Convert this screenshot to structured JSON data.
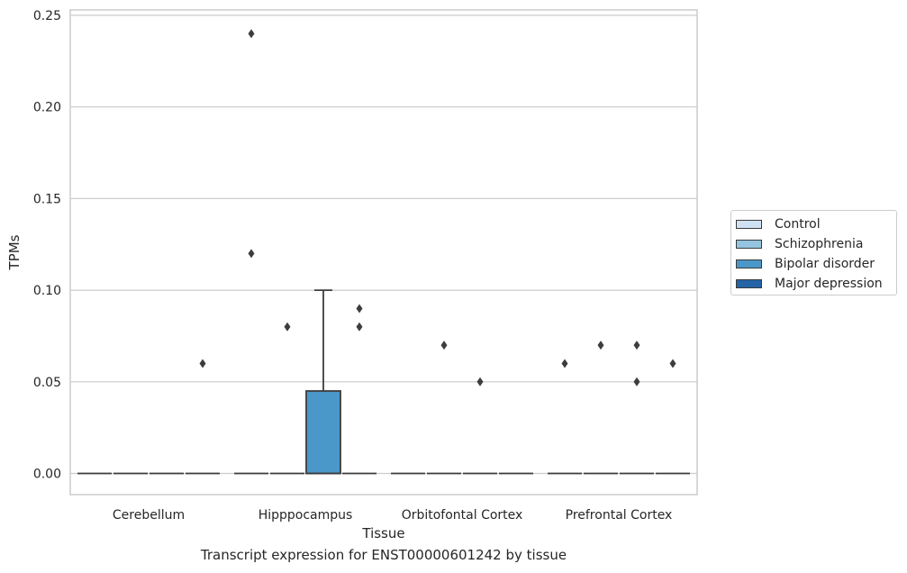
{
  "chart_data": {
    "type": "box",
    "title": "Transcript expression for ENST00000601242 by tissue",
    "xlabel": "Tissue",
    "ylabel": "TPMs",
    "categories": [
      "Cerebellum",
      "Hipppocampus",
      "Orbitofontal Cortex",
      "Prefrontal Cortex"
    ],
    "ylim": [
      -0.012,
      0.253
    ],
    "yticks": [
      "0.00",
      "0.05",
      "0.10",
      "0.15",
      "0.20",
      "0.25"
    ],
    "ytick_values": [
      0,
      0.05,
      0.1,
      0.15,
      0.2,
      0.25
    ],
    "grid": true,
    "legend_position": "right",
    "series": [
      {
        "name": "Control",
        "color": "#d0e1f2",
        "boxes": [
          {
            "category": "Cerebellum",
            "q1": 0,
            "median": 0,
            "q3": 0,
            "whisker_low": 0,
            "whisker_high": 0,
            "outliers": []
          },
          {
            "category": "Hipppocampus",
            "q1": 0,
            "median": 0,
            "q3": 0,
            "whisker_low": 0,
            "whisker_high": 0,
            "outliers": [
              0.24,
              0.12
            ]
          },
          {
            "category": "Orbitofontal Cortex",
            "q1": 0,
            "median": 0,
            "q3": 0,
            "whisker_low": 0,
            "whisker_high": 0,
            "outliers": []
          },
          {
            "category": "Prefrontal Cortex",
            "q1": 0,
            "median": 0,
            "q3": 0,
            "whisker_low": 0,
            "whisker_high": 0,
            "outliers": [
              0.06
            ]
          }
        ]
      },
      {
        "name": "Schizophrenia",
        "color": "#94c4df",
        "boxes": [
          {
            "category": "Cerebellum",
            "q1": 0,
            "median": 0,
            "q3": 0,
            "whisker_low": 0,
            "whisker_high": 0,
            "outliers": []
          },
          {
            "category": "Hipppocampus",
            "q1": 0,
            "median": 0,
            "q3": 0,
            "whisker_low": 0,
            "whisker_high": 0,
            "outliers": [
              0.08
            ]
          },
          {
            "category": "Orbitofontal Cortex",
            "q1": 0,
            "median": 0,
            "q3": 0,
            "whisker_low": 0,
            "whisker_high": 0,
            "outliers": [
              0.07
            ]
          },
          {
            "category": "Prefrontal Cortex",
            "q1": 0,
            "median": 0,
            "q3": 0,
            "whisker_low": 0,
            "whisker_high": 0,
            "outliers": [
              0.07
            ]
          }
        ]
      },
      {
        "name": "Bipolar disorder",
        "color": "#4a98c9",
        "boxes": [
          {
            "category": "Cerebellum",
            "q1": 0,
            "median": 0,
            "q3": 0,
            "whisker_low": 0,
            "whisker_high": 0,
            "outliers": []
          },
          {
            "category": "Hipppocampus",
            "q1": 0,
            "median": 0,
            "q3": 0.045,
            "whisker_low": 0,
            "whisker_high": 0.1,
            "outliers": []
          },
          {
            "category": "Orbitofontal Cortex",
            "q1": 0,
            "median": 0,
            "q3": 0,
            "whisker_low": 0,
            "whisker_high": 0,
            "outliers": [
              0.05
            ]
          },
          {
            "category": "Prefrontal Cortex",
            "q1": 0,
            "median": 0,
            "q3": 0,
            "whisker_low": 0,
            "whisker_high": 0,
            "outliers": [
              0.07,
              0.05
            ]
          }
        ]
      },
      {
        "name": "Major depression",
        "color": "#2464a7",
        "boxes": [
          {
            "category": "Cerebellum",
            "q1": 0,
            "median": 0,
            "q3": 0,
            "whisker_low": 0,
            "whisker_high": 0,
            "outliers": [
              0.06
            ]
          },
          {
            "category": "Hipppocampus",
            "q1": 0,
            "median": 0,
            "q3": 0,
            "whisker_low": 0,
            "whisker_high": 0,
            "outliers": [
              0.09,
              0.08
            ]
          },
          {
            "category": "Orbitofontal Cortex",
            "q1": 0,
            "median": 0,
            "q3": 0,
            "whisker_low": 0,
            "whisker_high": 0,
            "outliers": []
          },
          {
            "category": "Prefrontal Cortex",
            "q1": 0,
            "median": 0,
            "q3": 0,
            "whisker_low": 0,
            "whisker_high": 0,
            "outliers": [
              0.06
            ]
          }
        ]
      }
    ]
  }
}
